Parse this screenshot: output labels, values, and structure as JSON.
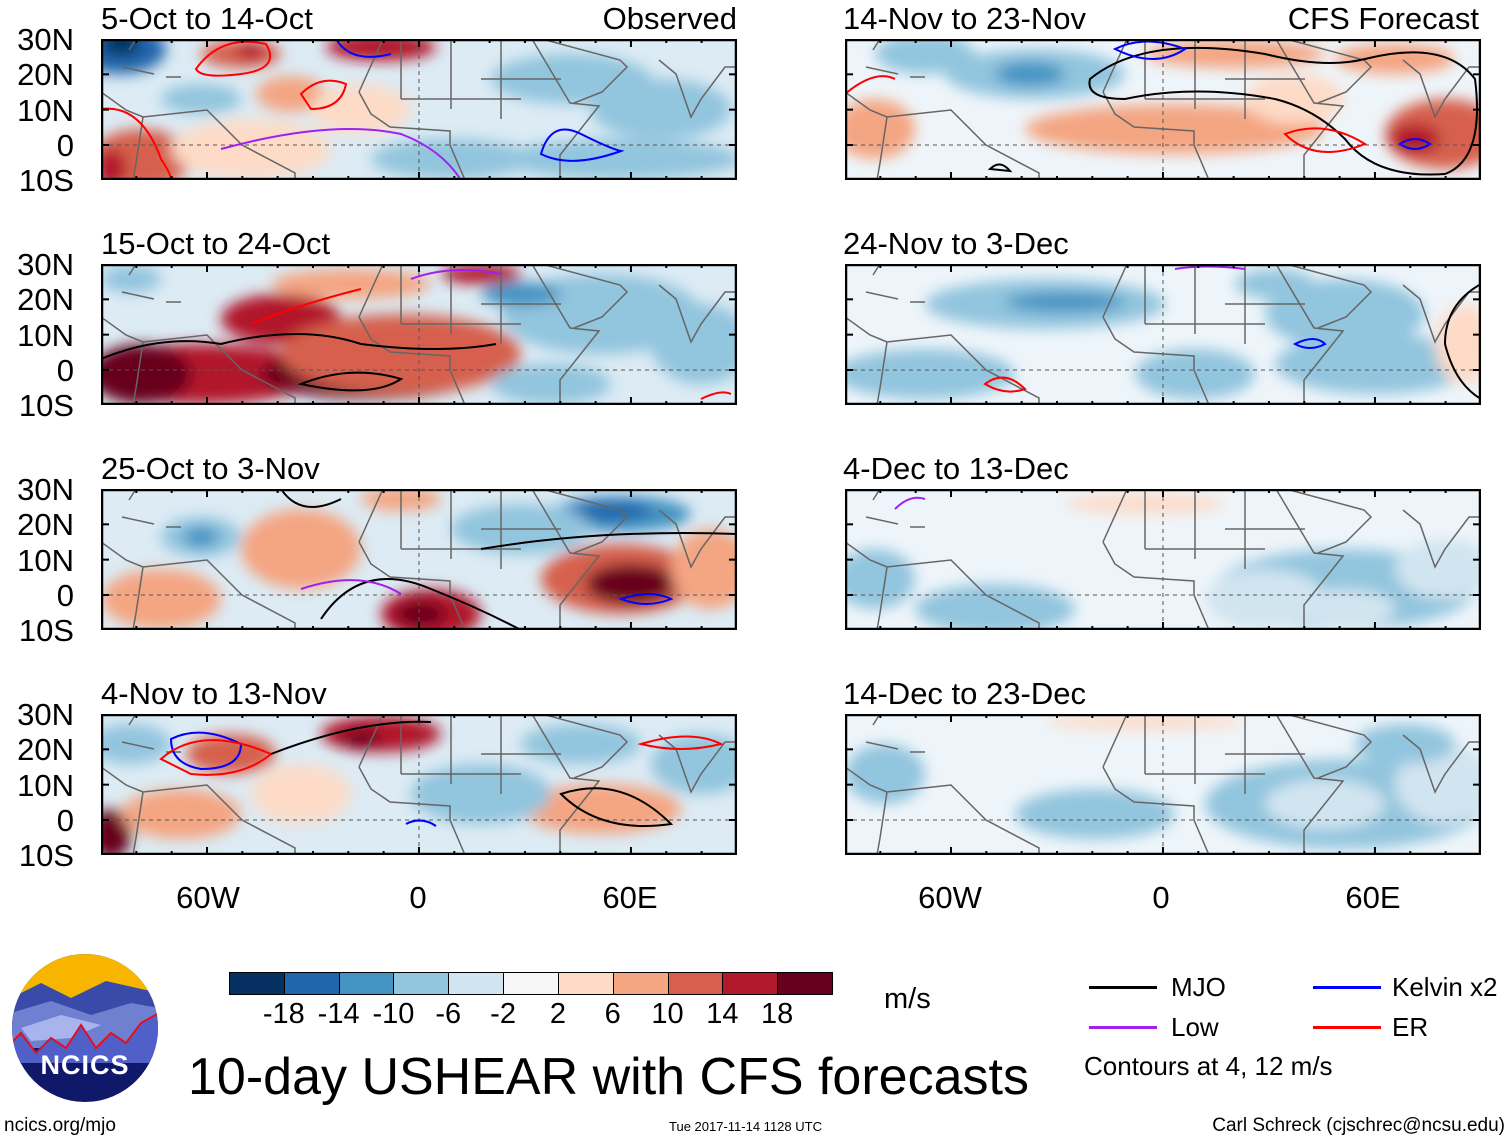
{
  "title": "10-day USHEAR with CFS forecasts",
  "observed_label": "Observed",
  "forecast_label": "CFS Forecast",
  "panels": [
    {
      "period": "5-Oct to 14-Oct",
      "source": "observed"
    },
    {
      "period": "15-Oct to 24-Oct",
      "source": "observed"
    },
    {
      "period": "25-Oct to 3-Nov",
      "source": "observed"
    },
    {
      "period": "4-Nov to 13-Nov",
      "source": "observed"
    },
    {
      "period": "14-Nov to 23-Nov",
      "source": "forecast"
    },
    {
      "period": "24-Nov to 3-Dec",
      "source": "forecast"
    },
    {
      "period": "4-Dec to 13-Dec",
      "source": "forecast"
    },
    {
      "period": "14-Dec to 23-Dec",
      "source": "forecast"
    }
  ],
  "lat_labels": [
    "30N",
    "20N",
    "10N",
    "0",
    "10S"
  ],
  "lon_labels": [
    "60W",
    "0",
    "60E"
  ],
  "colorbar": {
    "units": "m/s",
    "labels": [
      "-18",
      "-14",
      "-10",
      "-6",
      "-2",
      "2",
      "6",
      "10",
      "14",
      "18"
    ],
    "colors": [
      "#053061",
      "#2166ac",
      "#4393c3",
      "#92c5de",
      "#d1e5f0",
      "#f7f7f7",
      "#fddbc7",
      "#f4a582",
      "#d6604d",
      "#b2182b",
      "#67001f"
    ]
  },
  "legend": {
    "items": [
      {
        "label": "MJO",
        "color": "#000000"
      },
      {
        "label": "Low",
        "color": "#a020f0"
      },
      {
        "label": "Kelvin x2",
        "color": "#0000ff"
      },
      {
        "label": "ER",
        "color": "#ff0000"
      }
    ],
    "note": "Contours at 4, 12 m/s"
  },
  "logo": {
    "text": "NCICS"
  },
  "footer": {
    "url": "ncics.org/mjo",
    "timestamp": "Tue 2017-11-14 1128 UTC",
    "credit": "Carl Schreck (cjschrec@ncsu.edu)"
  }
}
